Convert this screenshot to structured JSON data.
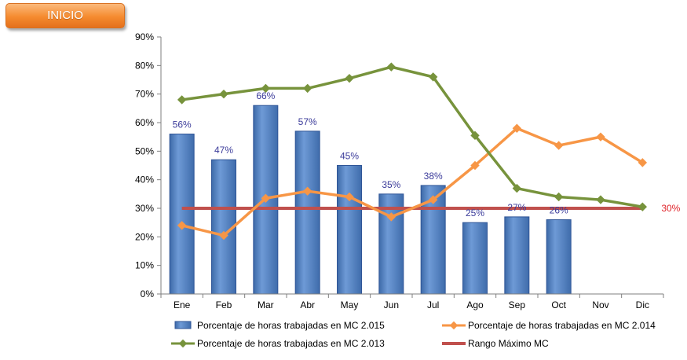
{
  "button": {
    "label": "INICIO"
  },
  "chart_data": {
    "type": "bar",
    "categories": [
      "Ene",
      "Feb",
      "Mar",
      "Abr",
      "May",
      "Jun",
      "Jul",
      "Ago",
      "Sep",
      "Oct",
      "Nov",
      "Dic"
    ],
    "ylim": [
      0,
      90
    ],
    "y_ticks": [
      0,
      10,
      20,
      30,
      40,
      50,
      60,
      70,
      80,
      90
    ],
    "y_tick_labels": [
      "0%",
      "10%",
      "20%",
      "30%",
      "40%",
      "50%",
      "60%",
      "70%",
      "80%",
      "90%"
    ],
    "grid": false,
    "legend_position": "bottom",
    "series": [
      {
        "name": "Porcentaje de horas trabajadas en MC 2.015",
        "type": "bar",
        "color": "#4f81bd",
        "values": [
          56,
          47,
          66,
          57,
          45,
          35,
          38,
          25,
          27,
          26,
          null,
          null
        ],
        "labels": [
          "56%",
          "47%",
          "66%",
          "57%",
          "45%",
          "35%",
          "38%",
          "25%",
          "27%",
          "26%",
          "",
          ""
        ]
      },
      {
        "name": "Porcentaje de horas trabajadas en MC 2.014",
        "type": "line",
        "color": "#f79646",
        "values": [
          24,
          20.5,
          33.5,
          36,
          34,
          27,
          33,
          45,
          58,
          52,
          55,
          46
        ]
      },
      {
        "name": "Porcentaje de horas trabajadas en MC 2.013",
        "type": "line",
        "color": "#77933c",
        "values": [
          68,
          70,
          72,
          72,
          75.5,
          79.5,
          76,
          55.5,
          37,
          34,
          33,
          30.5
        ]
      },
      {
        "name": "Rango Máximo MC",
        "type": "line",
        "color": "#c0504d",
        "values": [
          30,
          30,
          30,
          30,
          30,
          30,
          30,
          30,
          30,
          30,
          30,
          30
        ],
        "end_label": "30%"
      }
    ]
  }
}
